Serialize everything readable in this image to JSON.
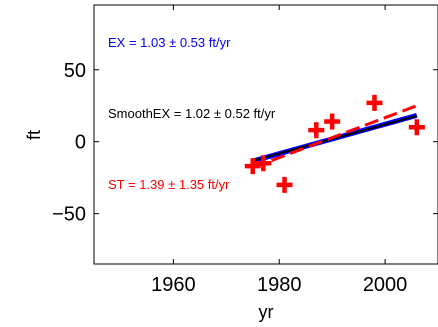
{
  "chart_data": {
    "type": "scatter",
    "xlabel": "yr",
    "ylabel": "ft",
    "xlim": [
      1945,
      2010
    ],
    "ylim": [
      -85,
      95
    ],
    "xticks": [
      1960,
      1980,
      2000
    ],
    "yticks": [
      -50,
      0,
      50
    ],
    "grid": false,
    "points": [
      {
        "x": 1975.0,
        "y": -17
      },
      {
        "x": 1977.0,
        "y": -15
      },
      {
        "x": 1981.0,
        "y": -30
      },
      {
        "x": 1987.0,
        "y": 8
      },
      {
        "x": 1990.0,
        "y": 14
      },
      {
        "x": 1998.0,
        "y": 27
      },
      {
        "x": 2006.0,
        "y": 10
      }
    ],
    "lines": [
      {
        "label": "EX",
        "x": [
          1975,
          2006
        ],
        "y": [
          -13.5,
          18.3
        ],
        "color": "#0000ff",
        "style": "solid"
      },
      {
        "label": "SmoothEX",
        "x": [
          1975,
          2006
        ],
        "y": [
          -13.2,
          18.0
        ],
        "color": "#000000",
        "style": "solid"
      },
      {
        "label": "ST",
        "x": [
          1975,
          2006
        ],
        "y": [
          -18.0,
          25.0
        ],
        "color": "#ff0000",
        "style": "dashed"
      }
    ],
    "annotations": [
      {
        "text": "EX = 1.03 ± 0.53 ft/yr",
        "color": "#0000ff"
      },
      {
        "text": "SmoothEX = 1.02 ± 0.52 ft/yr",
        "color": "#000000"
      },
      {
        "text": "ST = 1.39 ± 1.35 ft/yr",
        "color": "#ff0000"
      }
    ],
    "marker_color": "#ff0000"
  }
}
